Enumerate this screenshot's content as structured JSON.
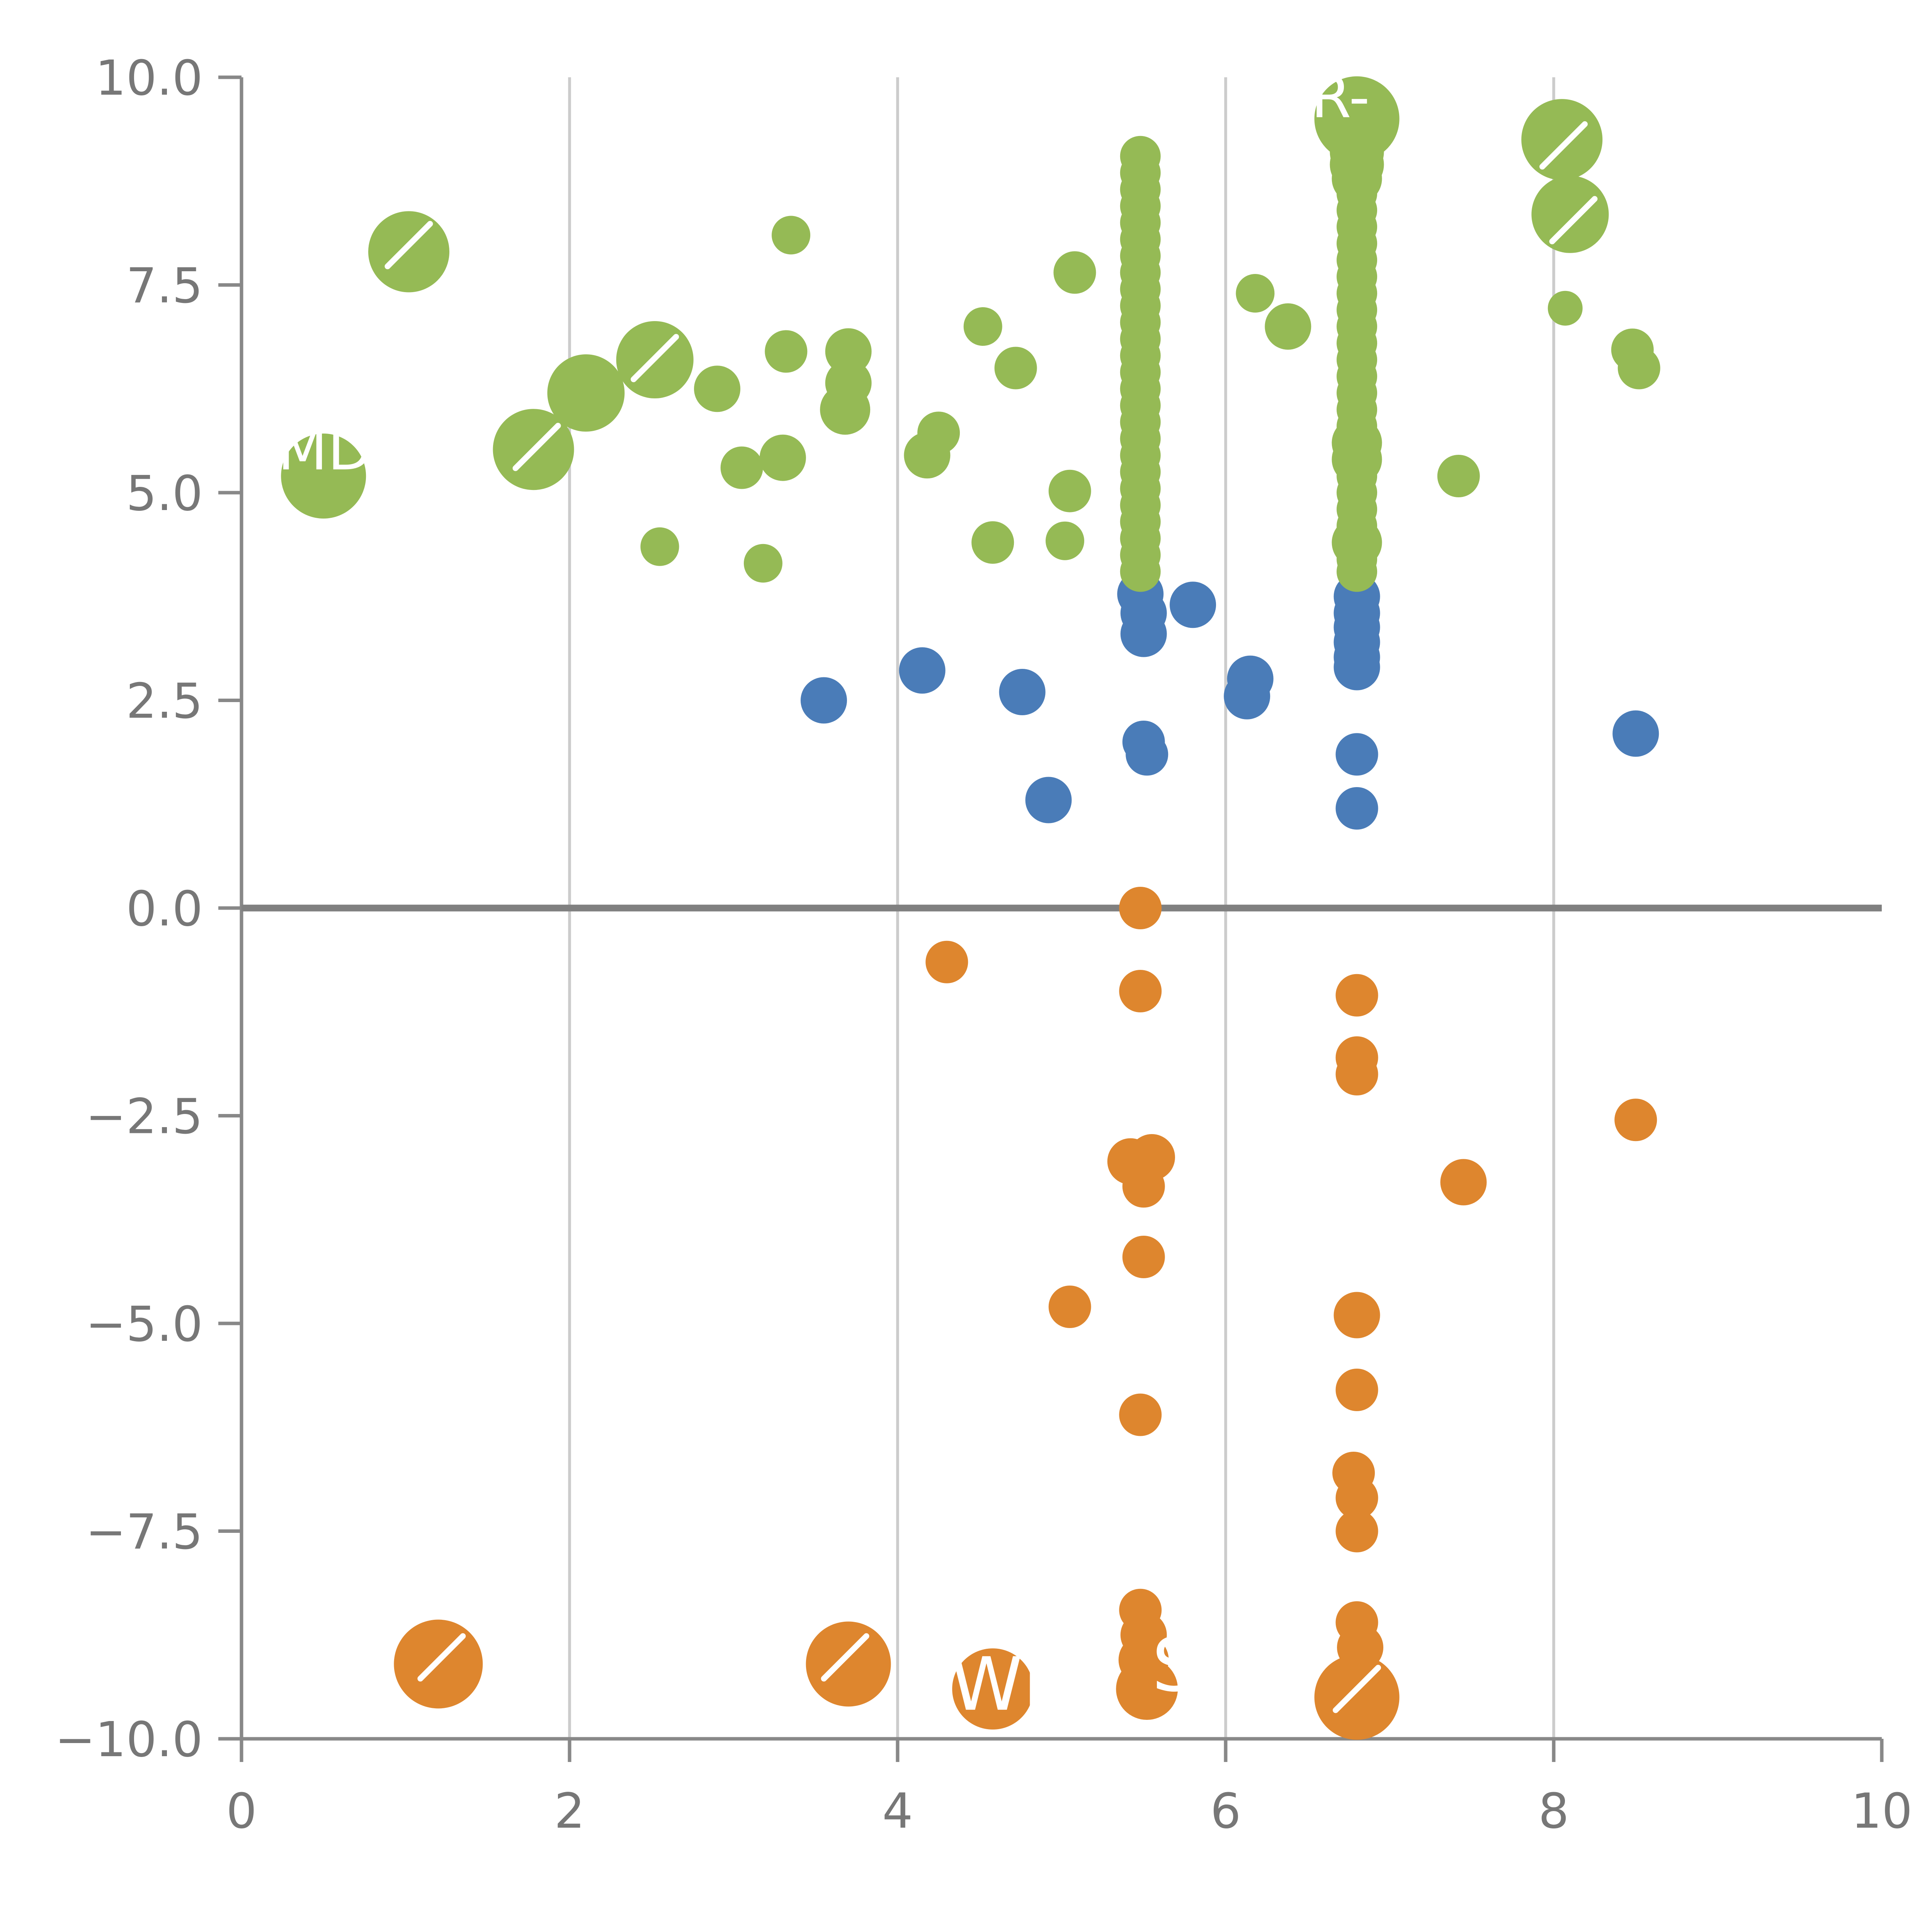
{
  "page": {
    "background": "#ffffff"
  },
  "chart_data": {
    "type": "scatter",
    "title": "",
    "xlabel": "",
    "ylabel": "",
    "xlim": [
      0,
      10
    ],
    "ylim": [
      -10,
      10
    ],
    "x_ticks": [
      0,
      2,
      4,
      6,
      8,
      10
    ],
    "x_tick_labels": [
      "0",
      "2",
      "4",
      "6",
      "8",
      "10"
    ],
    "y_ticks": [
      10.0,
      7.5,
      5.0,
      2.5,
      0.0,
      -2.5,
      -5.0,
      -7.5,
      -10.0
    ],
    "y_tick_labels": [
      "10.0",
      "7.5",
      "5.0",
      "2.5",
      "0.0",
      "−2.5",
      "−5.0",
      "−7.5",
      "−10.0"
    ],
    "grid_x": [
      2,
      4,
      6,
      8
    ],
    "zero_line_y": 0,
    "legend": "none",
    "colors": {
      "green": "#95ba55",
      "blue": "#4a7cb8",
      "orange": "#de862e",
      "grid": "#cccccc",
      "axis": "#888888",
      "zero_line": "#808080",
      "tick_text": "#777777",
      "label_text": "#ffffff"
    },
    "series": [
      {
        "name": "orange",
        "color": "#de862e",
        "points": [
          [
            1.2,
            -9.1,
            23
          ],
          [
            3.7,
            -9.1,
            22
          ],
          [
            4.58,
            -9.4,
            21
          ],
          [
            4.3,
            -0.65,
            11
          ],
          [
            5.48,
            0.0,
            11
          ],
          [
            5.48,
            -1.0,
            11
          ],
          [
            5.42,
            -3.05,
            12
          ],
          [
            5.55,
            -3.0,
            12
          ],
          [
            5.5,
            -3.35,
            11
          ],
          [
            5.5,
            -4.2,
            11
          ],
          [
            5.05,
            -4.8,
            11
          ],
          [
            5.48,
            -6.1,
            11
          ],
          [
            5.48,
            -8.45,
            11
          ],
          [
            5.5,
            -8.75,
            12
          ],
          [
            5.5,
            -9.05,
            13
          ],
          [
            5.52,
            -9.4,
            16
          ],
          [
            6.8,
            -1.05,
            11
          ],
          [
            6.8,
            -1.8,
            11
          ],
          [
            6.8,
            -2.0,
            11
          ],
          [
            6.8,
            -4.9,
            12
          ],
          [
            6.8,
            -5.8,
            11
          ],
          [
            6.78,
            -6.8,
            11
          ],
          [
            6.8,
            -7.1,
            11
          ],
          [
            6.8,
            -7.5,
            11
          ],
          [
            6.8,
            -8.6,
            11
          ],
          [
            6.82,
            -8.9,
            12
          ],
          [
            6.8,
            -9.5,
            22
          ],
          [
            7.45,
            -3.3,
            12
          ],
          [
            8.5,
            -2.55,
            11
          ]
        ]
      },
      {
        "name": "blue",
        "color": "#4a7cb8",
        "points": [
          [
            3.55,
            2.5,
            12
          ],
          [
            4.15,
            2.86,
            12
          ],
          [
            4.76,
            2.6,
            12
          ],
          [
            4.92,
            1.3,
            12
          ],
          [
            5.48,
            3.78,
            12
          ],
          [
            5.5,
            3.55,
            12
          ],
          [
            5.5,
            3.3,
            12
          ],
          [
            5.5,
            2.0,
            11
          ],
          [
            5.52,
            1.85,
            11
          ],
          [
            5.8,
            3.65,
            12
          ],
          [
            6.15,
            2.76,
            12
          ],
          [
            6.13,
            2.55,
            12
          ],
          [
            6.8,
            3.75,
            12
          ],
          [
            6.8,
            3.55,
            12
          ],
          [
            6.8,
            3.38,
            12
          ],
          [
            6.8,
            3.2,
            12
          ],
          [
            6.8,
            3.02,
            12
          ],
          [
            6.8,
            2.9,
            12
          ],
          [
            6.8,
            1.85,
            11
          ],
          [
            6.8,
            1.2,
            11
          ],
          [
            8.5,
            2.1,
            12
          ]
        ]
      },
      {
        "name": "green",
        "color": "#95ba55",
        "points": [
          [
            0.5,
            5.2,
            22
          ],
          [
            1.02,
            7.9,
            21
          ],
          [
            1.78,
            5.52,
            21
          ],
          [
            2.1,
            6.2,
            20
          ],
          [
            2.52,
            6.6,
            20
          ],
          [
            2.55,
            4.35,
            10
          ],
          [
            2.9,
            6.25,
            12
          ],
          [
            3.05,
            5.3,
            11
          ],
          [
            3.18,
            4.15,
            10
          ],
          [
            3.3,
            5.42,
            12
          ],
          [
            3.32,
            6.7,
            11
          ],
          [
            3.35,
            8.1,
            10
          ],
          [
            3.68,
            6.0,
            13
          ],
          [
            3.7,
            6.32,
            12
          ],
          [
            3.7,
            6.7,
            12
          ],
          [
            4.18,
            5.45,
            12
          ],
          [
            4.25,
            5.72,
            11
          ],
          [
            4.52,
            7.0,
            10
          ],
          [
            4.58,
            4.4,
            11
          ],
          [
            4.72,
            6.5,
            11
          ],
          [
            5.02,
            4.42,
            10
          ],
          [
            5.05,
            5.02,
            11
          ],
          [
            5.08,
            7.65,
            11
          ],
          [
            6.18,
            7.4,
            10
          ],
          [
            6.38,
            7.0,
            12
          ],
          [
            7.42,
            5.2,
            11
          ],
          [
            8.05,
            9.25,
            21
          ],
          [
            8.1,
            8.35,
            20
          ],
          [
            8.07,
            7.22,
            9
          ],
          [
            8.48,
            6.72,
            11
          ],
          [
            8.52,
            6.5,
            11
          ],
          [
            5.48,
            9.05,
            10.5
          ],
          [
            5.48,
            8.85,
            10.5
          ],
          [
            5.48,
            8.65,
            10.5
          ],
          [
            5.48,
            8.45,
            10.5
          ],
          [
            5.48,
            8.25,
            10.5
          ],
          [
            5.48,
            8.05,
            10.5
          ],
          [
            5.48,
            7.85,
            10.5
          ],
          [
            5.48,
            7.65,
            10.5
          ],
          [
            5.48,
            7.45,
            10.5
          ],
          [
            5.48,
            7.25,
            10.5
          ],
          [
            5.48,
            7.05,
            10.5
          ],
          [
            5.48,
            6.85,
            10.5
          ],
          [
            5.48,
            6.65,
            10.5
          ],
          [
            5.48,
            6.45,
            10.5
          ],
          [
            5.48,
            6.25,
            10.5
          ],
          [
            5.48,
            6.05,
            10.5
          ],
          [
            5.48,
            5.85,
            10.5
          ],
          [
            5.48,
            5.65,
            10.5
          ],
          [
            5.48,
            5.45,
            10.5
          ],
          [
            5.48,
            5.25,
            10.5
          ],
          [
            5.48,
            5.05,
            10.5
          ],
          [
            5.48,
            4.85,
            10.5
          ],
          [
            5.48,
            4.65,
            10.5
          ],
          [
            5.48,
            4.45,
            10.5
          ],
          [
            5.48,
            4.25,
            10.5
          ],
          [
            5.48,
            4.05,
            10.5
          ],
          [
            6.8,
            9.5,
            22
          ],
          [
            6.8,
            9.1,
            14
          ],
          [
            6.8,
            8.95,
            14
          ],
          [
            6.8,
            8.78,
            13
          ],
          [
            6.8,
            8.6,
            10.5
          ],
          [
            6.8,
            8.4,
            10.5
          ],
          [
            6.8,
            8.2,
            10.5
          ],
          [
            6.8,
            8.0,
            10.5
          ],
          [
            6.8,
            7.8,
            10.5
          ],
          [
            6.8,
            7.6,
            10.5
          ],
          [
            6.8,
            7.4,
            10.5
          ],
          [
            6.8,
            7.2,
            10.5
          ],
          [
            6.8,
            7.0,
            10.5
          ],
          [
            6.8,
            6.8,
            10.5
          ],
          [
            6.8,
            6.6,
            10.5
          ],
          [
            6.8,
            6.4,
            10.5
          ],
          [
            6.8,
            6.2,
            10.5
          ],
          [
            6.8,
            6.0,
            10.5
          ],
          [
            6.8,
            5.8,
            10.5
          ],
          [
            6.8,
            5.6,
            13
          ],
          [
            6.8,
            5.4,
            13
          ],
          [
            6.8,
            5.2,
            10.5
          ],
          [
            6.8,
            5.0,
            10.5
          ],
          [
            6.8,
            4.8,
            10.5
          ],
          [
            6.8,
            4.6,
            10.5
          ],
          [
            6.8,
            4.4,
            13
          ],
          [
            6.8,
            4.2,
            10.5
          ],
          [
            6.8,
            4.05,
            10.5
          ]
        ]
      }
    ],
    "annotations": [
      {
        "text": "R-",
        "x": 6.52,
        "y": 9.52,
        "size": 30
      },
      {
        "text": "MD",
        "x": 0.22,
        "y": 5.28,
        "size": 30
      },
      {
        "text": "WR",
        "x": 4.32,
        "y": -9.65,
        "size": 38
      },
      {
        "text": "S",
        "x": 5.55,
        "y": -9.42,
        "size": 38
      }
    ],
    "slashes": [
      [
        1.02,
        7.98
      ],
      [
        1.8,
        5.55
      ],
      [
        2.52,
        6.62
      ],
      [
        8.06,
        9.18
      ],
      [
        8.12,
        8.28
      ],
      [
        1.22,
        -9.02
      ],
      [
        3.68,
        -9.02
      ],
      [
        6.8,
        -9.4
      ]
    ]
  }
}
